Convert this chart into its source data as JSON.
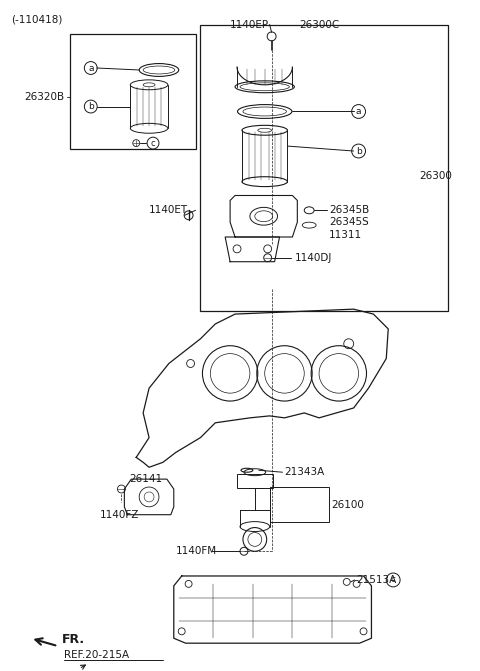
{
  "bg_color": "#ffffff",
  "fig_width": 4.8,
  "fig_height": 6.71,
  "dpi": 100,
  "black": "#1a1a1a",
  "labels": {
    "top_left_note": "(-110418)",
    "fr_label": "FR.",
    "ref_label": "REF.20-215A",
    "part_1140EP": "1140EP",
    "part_26300C": "26300C",
    "part_26300": "26300",
    "part_26320B": "26320B",
    "part_1140ET": "1140ET",
    "part_26345B": "26345B",
    "part_26345S": "26345S",
    "part_11311": "11311",
    "part_1140DJ": "1140DJ",
    "part_26141": "26141",
    "part_1140FZ": "1140FZ",
    "part_21343A": "21343A",
    "part_26100": "26100",
    "part_1140FM": "1140FM",
    "part_21513A": "21513A",
    "label_a": "a",
    "label_b": "b",
    "label_c": "c"
  }
}
